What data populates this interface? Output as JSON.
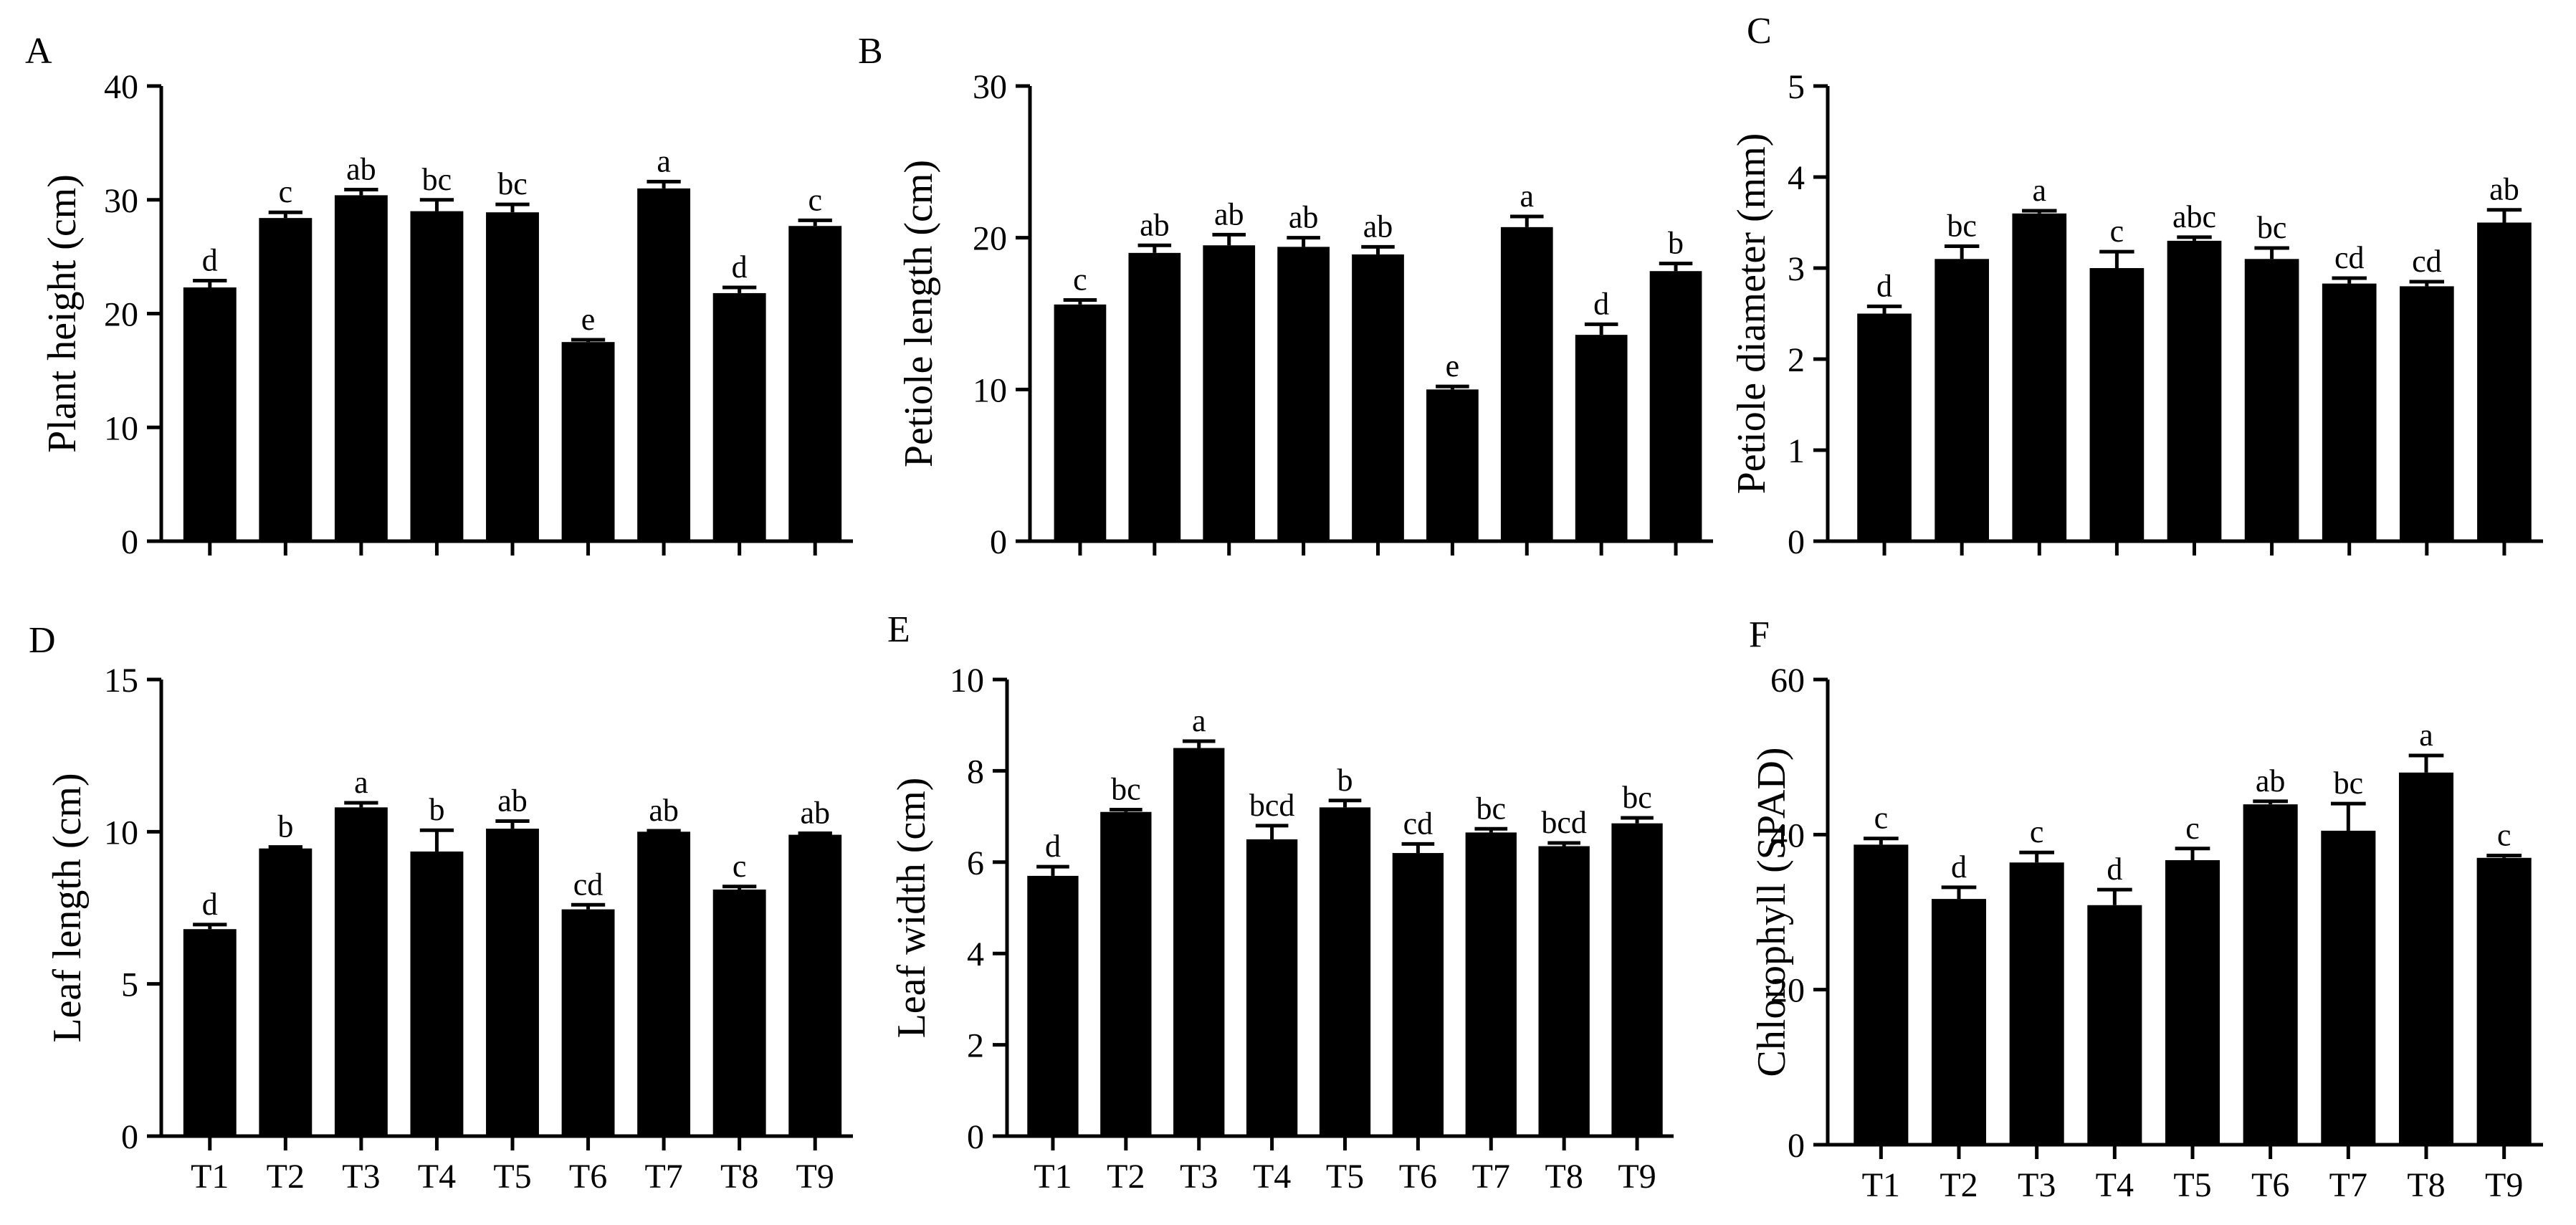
{
  "chart_data": [
    {
      "panel": "A",
      "type": "bar",
      "ylabel": "Plant height (cm)",
      "xlabel": "",
      "ylim": [
        0,
        40
      ],
      "yticks": [
        0,
        10,
        20,
        30,
        40
      ],
      "categories": [
        "T1",
        "T2",
        "T3",
        "T4",
        "T5",
        "T6",
        "T7",
        "T8",
        "T9"
      ],
      "values": [
        22.3,
        28.4,
        30.4,
        29.0,
        28.9,
        17.5,
        31.0,
        21.8,
        27.7
      ],
      "errors": [
        0.6,
        0.5,
        0.5,
        1.0,
        0.7,
        0.2,
        0.6,
        0.5,
        0.5
      ],
      "letters": [
        "d",
        "c",
        "ab",
        "bc",
        "bc",
        "e",
        "a",
        "d",
        "c"
      ],
      "show_xticklabels": false
    },
    {
      "panel": "B",
      "type": "bar",
      "ylabel": "Petiole length (cm)",
      "xlabel": "",
      "ylim": [
        0,
        30
      ],
      "yticks": [
        0,
        10,
        20,
        30
      ],
      "categories": [
        "T1",
        "T2",
        "T3",
        "T4",
        "T5",
        "T6",
        "T7",
        "T8",
        "T9"
      ],
      "values": [
        15.6,
        19.0,
        19.5,
        19.4,
        18.9,
        10.0,
        20.7,
        13.6,
        17.8
      ],
      "errors": [
        0.3,
        0.5,
        0.7,
        0.6,
        0.5,
        0.2,
        0.7,
        0.7,
        0.5
      ],
      "letters": [
        "c",
        "ab",
        "ab",
        "ab",
        "ab",
        "e",
        "a",
        "d",
        "b"
      ],
      "show_xticklabels": false
    },
    {
      "panel": "C",
      "type": "bar",
      "ylabel": "Petiole diameter (mm)",
      "xlabel": "",
      "ylim": [
        0,
        5
      ],
      "yticks": [
        0,
        1,
        2,
        3,
        4,
        5
      ],
      "categories": [
        "T1",
        "T2",
        "T3",
        "T4",
        "T5",
        "T6",
        "T7",
        "T8",
        "T9"
      ],
      "values": [
        2.5,
        3.1,
        3.6,
        3.0,
        3.3,
        3.1,
        2.83,
        2.8,
        3.5
      ],
      "errors": [
        0.08,
        0.14,
        0.03,
        0.18,
        0.04,
        0.12,
        0.06,
        0.05,
        0.14
      ],
      "letters": [
        "d",
        "bc",
        "a",
        "c",
        "abc",
        "bc",
        "cd",
        "cd",
        "ab"
      ],
      "show_xticklabels": false
    },
    {
      "panel": "D",
      "type": "bar",
      "ylabel": "Leaf length (cm)",
      "xlabel": "",
      "ylim": [
        0,
        15
      ],
      "yticks": [
        0,
        5,
        10,
        15
      ],
      "categories": [
        "T1",
        "T2",
        "T3",
        "T4",
        "T5",
        "T6",
        "T7",
        "T8",
        "T9"
      ],
      "values": [
        6.8,
        9.45,
        10.8,
        9.35,
        10.1,
        7.45,
        10.0,
        8.1,
        9.9
      ],
      "errors": [
        0.15,
        0.05,
        0.15,
        0.7,
        0.25,
        0.15,
        0.03,
        0.1,
        0.05
      ],
      "letters": [
        "d",
        "b",
        "a",
        "b",
        "ab",
        "cd",
        "ab",
        "c",
        "ab"
      ],
      "show_xticklabels": true
    },
    {
      "panel": "E",
      "type": "bar",
      "ylabel": "Leaf width (cm)",
      "xlabel": "",
      "ylim": [
        0,
        10
      ],
      "yticks": [
        0,
        2,
        4,
        6,
        8,
        10
      ],
      "categories": [
        "T1",
        "T2",
        "T3",
        "T4",
        "T5",
        "T6",
        "T7",
        "T8",
        "T9"
      ],
      "values": [
        5.7,
        7.1,
        8.5,
        6.5,
        7.2,
        6.2,
        6.65,
        6.35,
        6.85
      ],
      "errors": [
        0.2,
        0.05,
        0.15,
        0.3,
        0.15,
        0.2,
        0.08,
        0.07,
        0.12
      ],
      "letters": [
        "d",
        "bc",
        "a",
        "bcd",
        "b",
        "cd",
        "bc",
        "bcd",
        "bc"
      ],
      "show_xticklabels": true
    },
    {
      "panel": "F",
      "type": "bar",
      "ylabel": "Chlorophyll (SPAD)",
      "xlabel": "",
      "ylim": [
        0,
        60
      ],
      "yticks": [
        0,
        20,
        40,
        60
      ],
      "categories": [
        "T1",
        "T2",
        "T3",
        "T4",
        "T5",
        "T6",
        "T7",
        "T8",
        "T9"
      ],
      "values": [
        38.7,
        31.7,
        36.4,
        30.9,
        36.7,
        43.9,
        40.5,
        48.0,
        37.0
      ],
      "errors": [
        0.8,
        1.5,
        1.3,
        2.0,
        1.5,
        0.4,
        3.5,
        2.2,
        0.3
      ],
      "letters": [
        "c",
        "d",
        "c",
        "d",
        "c",
        "ab",
        "bc",
        "a",
        "c"
      ],
      "show_xticklabels": true
    }
  ]
}
